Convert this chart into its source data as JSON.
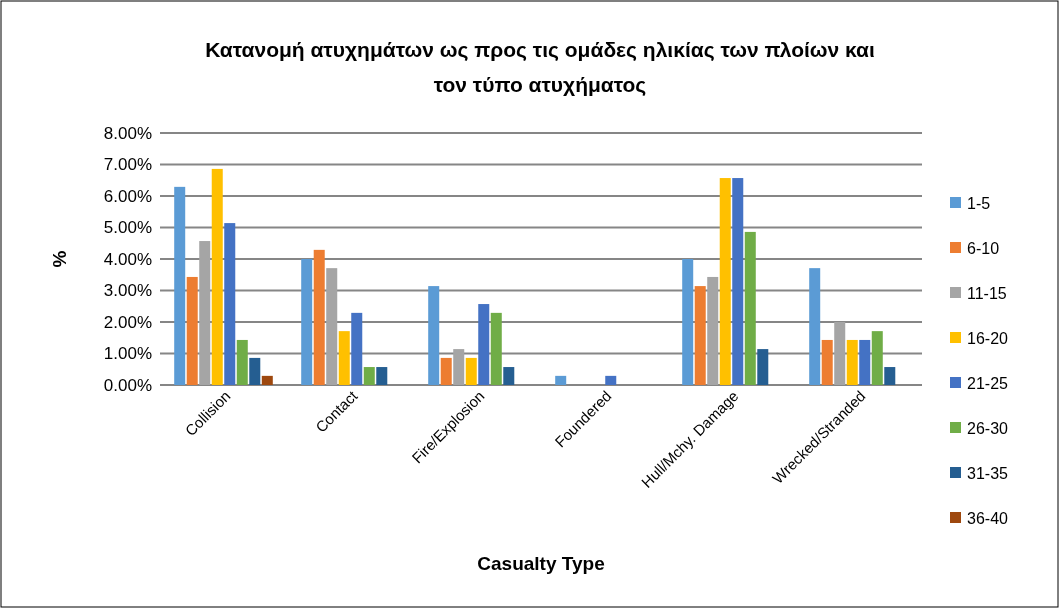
{
  "chart_data": {
    "type": "bar",
    "title": "Κατανομή ατυχημάτων ως προς τις ομάδες ηλικίας των πλοίων και τον τύπο ατυχήματος",
    "xlabel": "Casualty Type",
    "ylabel": "%",
    "categories": [
      "Collision",
      "Contact",
      "Fire/Explosion",
      "Foundered",
      "Hull/Mchy. Damage",
      "Wrecked/Stranded"
    ],
    "series": [
      {
        "name": "1-5",
        "color": "#5b9bd5",
        "values": [
          6.29,
          4.0,
          3.14,
          0.29,
          4.0,
          3.71
        ]
      },
      {
        "name": "6-10",
        "color": "#ed7d31",
        "values": [
          3.43,
          4.29,
          0.86,
          0,
          3.14,
          1.43
        ]
      },
      {
        "name": "11-15",
        "color": "#a5a5a5",
        "values": [
          4.57,
          3.71,
          1.14,
          0,
          3.43,
          2.0
        ]
      },
      {
        "name": "16-20",
        "color": "#ffc000",
        "values": [
          6.86,
          1.71,
          0.86,
          0,
          6.57,
          1.43
        ]
      },
      {
        "name": "21-25",
        "color": "#4472c4",
        "values": [
          5.14,
          2.29,
          2.57,
          0.29,
          6.57,
          1.43
        ]
      },
      {
        "name": "26-30",
        "color": "#70ad47",
        "values": [
          1.43,
          0.57,
          2.29,
          0,
          4.86,
          1.71
        ]
      },
      {
        "name": "31-35",
        "color": "#255e91",
        "values": [
          0.86,
          0.57,
          0.57,
          0,
          1.14,
          0.57
        ]
      },
      {
        "name": "36-40",
        "color": "#9e480e",
        "values": [
          0.29,
          0,
          0,
          0,
          0,
          0
        ]
      }
    ],
    "ylim": [
      0,
      8
    ],
    "yticks": [
      {
        "value": 0,
        "label": "0.00%"
      },
      {
        "value": 1,
        "label": "1.00%"
      },
      {
        "value": 2,
        "label": "2.00%"
      },
      {
        "value": 3,
        "label": "3.00%"
      },
      {
        "value": 4,
        "label": "4.00%"
      },
      {
        "value": 5,
        "label": "5.00%"
      },
      {
        "value": 6,
        "label": "6.00%"
      },
      {
        "value": 7,
        "label": "7.00%"
      },
      {
        "value": 8,
        "label": "8.00%"
      }
    ],
    "grid": "y",
    "legend": "right"
  }
}
